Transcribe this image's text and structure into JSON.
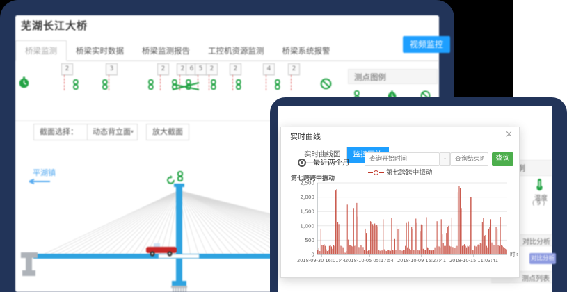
{
  "window1": {
    "title": "芜湖长江大桥",
    "tabs": [
      {
        "label": "桥梁监测",
        "active": true
      },
      {
        "label": "桥梁实时数据",
        "active": false
      },
      {
        "label": "桥梁监测报告",
        "active": false
      },
      {
        "label": "工控机资源监测",
        "active": false
      },
      {
        "label": "桥梁系统报警",
        "active": false
      }
    ],
    "video_button": "视频监控",
    "legend_panel": {
      "title": "测点图例"
    },
    "sensor_strip": {
      "badges": [
        {
          "x": 66,
          "label": "2"
        },
        {
          "x": 130,
          "label": "3"
        },
        {
          "x": 204,
          "label": "2"
        },
        {
          "x": 232,
          "label": "2"
        },
        {
          "x": 245,
          "label": "6"
        },
        {
          "x": 258,
          "label": "5"
        },
        {
          "x": 274,
          "label": "2"
        },
        {
          "x": 308,
          "label": "2"
        },
        {
          "x": 356,
          "label": "4"
        },
        {
          "x": 392,
          "label": "2"
        }
      ],
      "dashes": [
        70,
        134,
        208,
        236,
        262,
        278,
        312,
        360,
        396
      ],
      "chains": [
        82,
        124,
        190,
        224,
        244,
        280,
        316,
        372
      ]
    },
    "section_select": {
      "label": "截面选择：",
      "value": "动态背立面",
      "caret": "▾",
      "zoom_button": "放大截面"
    },
    "bridge": {
      "direction_label": "平湖镇"
    }
  },
  "window2": {
    "modal": {
      "title": "实时曲线",
      "close": "×",
      "tabs": [
        {
          "label": "实时曲线图",
          "active": false
        },
        {
          "label": "监控回放",
          "active": true
        }
      ],
      "radio_label": "最近两个月",
      "start_placeholder": "查询开始时间",
      "separator": "-",
      "end_placeholder": "查询结束时间",
      "query_button": "查询",
      "legend_label": "第七跨跨中振动"
    },
    "right_panel": {
      "legend_header": "测点图例",
      "temp_label": "温度",
      "temp_count": "( 9 )",
      "compare_header": "对比分析",
      "compare_button": "对比分析",
      "list_header": "测点列表"
    }
  },
  "chart_data": {
    "type": "bar",
    "title": "第七跨跨中振动",
    "series_name": "第七跨跨中振动",
    "xlabel": "时间",
    "ylim": [
      0,
      2500
    ],
    "yticks": [
      "2,500",
      "2,000",
      "1,500",
      "1,000",
      "500",
      "0"
    ],
    "x_tick_labels": [
      "2018-09-30 16:01:44",
      "2018-10-05 05:17:54",
      "2018-10-09 15:27:41",
      "2018-10-15 11:03:41"
    ],
    "grid": true,
    "legend_position": "top",
    "color": "#c0392b",
    "values": [
      150,
      220,
      120,
      900,
      340,
      330,
      360,
      300,
      180,
      120,
      150,
      300,
      320,
      280,
      200,
      320,
      300,
      2230,
      2280,
      1130,
      1060,
      320,
      300,
      280,
      250,
      90,
      60,
      120,
      1740,
      520,
      320,
      330,
      300,
      280,
      1620,
      300,
      320,
      1800,
      1320,
      260,
      240,
      330,
      300,
      260,
      150,
      900,
      750,
      120,
      140,
      160,
      1160,
      1130,
      1060,
      1000,
      1080,
      1010,
      1040,
      980,
      150,
      130,
      160,
      140,
      1230,
      180,
      130,
      120,
      150,
      160,
      140,
      130,
      1270,
      160,
      140,
      540,
      160,
      1000,
      880,
      910,
      160,
      140,
      130,
      150,
      160,
      300,
      1100,
      250,
      1150,
      200,
      160,
      960,
      890,
      150,
      140,
      1250,
      1100,
      160,
      140,
      820,
      1050,
      1040,
      200,
      160,
      150,
      1300,
      250,
      230,
      160,
      150,
      140,
      160,
      150,
      250,
      300,
      1160,
      300,
      280,
      250,
      1230,
      700,
      400,
      300,
      300,
      750,
      950,
      1000,
      300,
      280,
      1290,
      260,
      240,
      220,
      280,
      300,
      2180,
      2380,
      2330,
      1620,
      300,
      330,
      360,
      300,
      250,
      300,
      280,
      320,
      2000,
      1990,
      150,
      140,
      300,
      280,
      320,
      350,
      330,
      400,
      380,
      1130,
      1270,
      660,
      680,
      300,
      250,
      900,
      950,
      1230,
      420,
      360,
      340,
      320,
      960,
      890,
      330,
      300,
      1310,
      340,
      300,
      260,
      240,
      200,
      180
    ]
  }
}
